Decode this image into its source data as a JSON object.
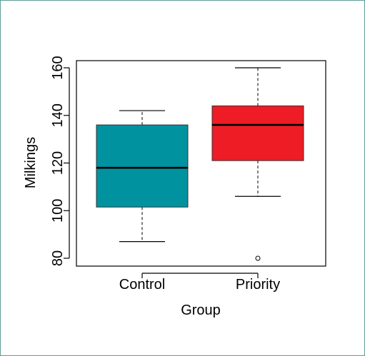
{
  "chart_data": {
    "type": "box",
    "title": "",
    "xlabel": "Group",
    "ylabel": "Milkings",
    "ylim": [
      80,
      163
    ],
    "yticks": [
      80,
      100,
      120,
      140,
      160
    ],
    "grid": false,
    "legend": "none",
    "groups": [
      {
        "name": "Control",
        "color": "#00929f",
        "min": 87,
        "q1": 101.5,
        "median": 118,
        "q3": 136,
        "max": 142,
        "outliers": []
      },
      {
        "name": "Priority",
        "color": "#ee1c25",
        "min": 106,
        "q1": 121,
        "median": 136,
        "q3": 144,
        "max": 160,
        "outliers": [
          80
        ]
      }
    ]
  }
}
